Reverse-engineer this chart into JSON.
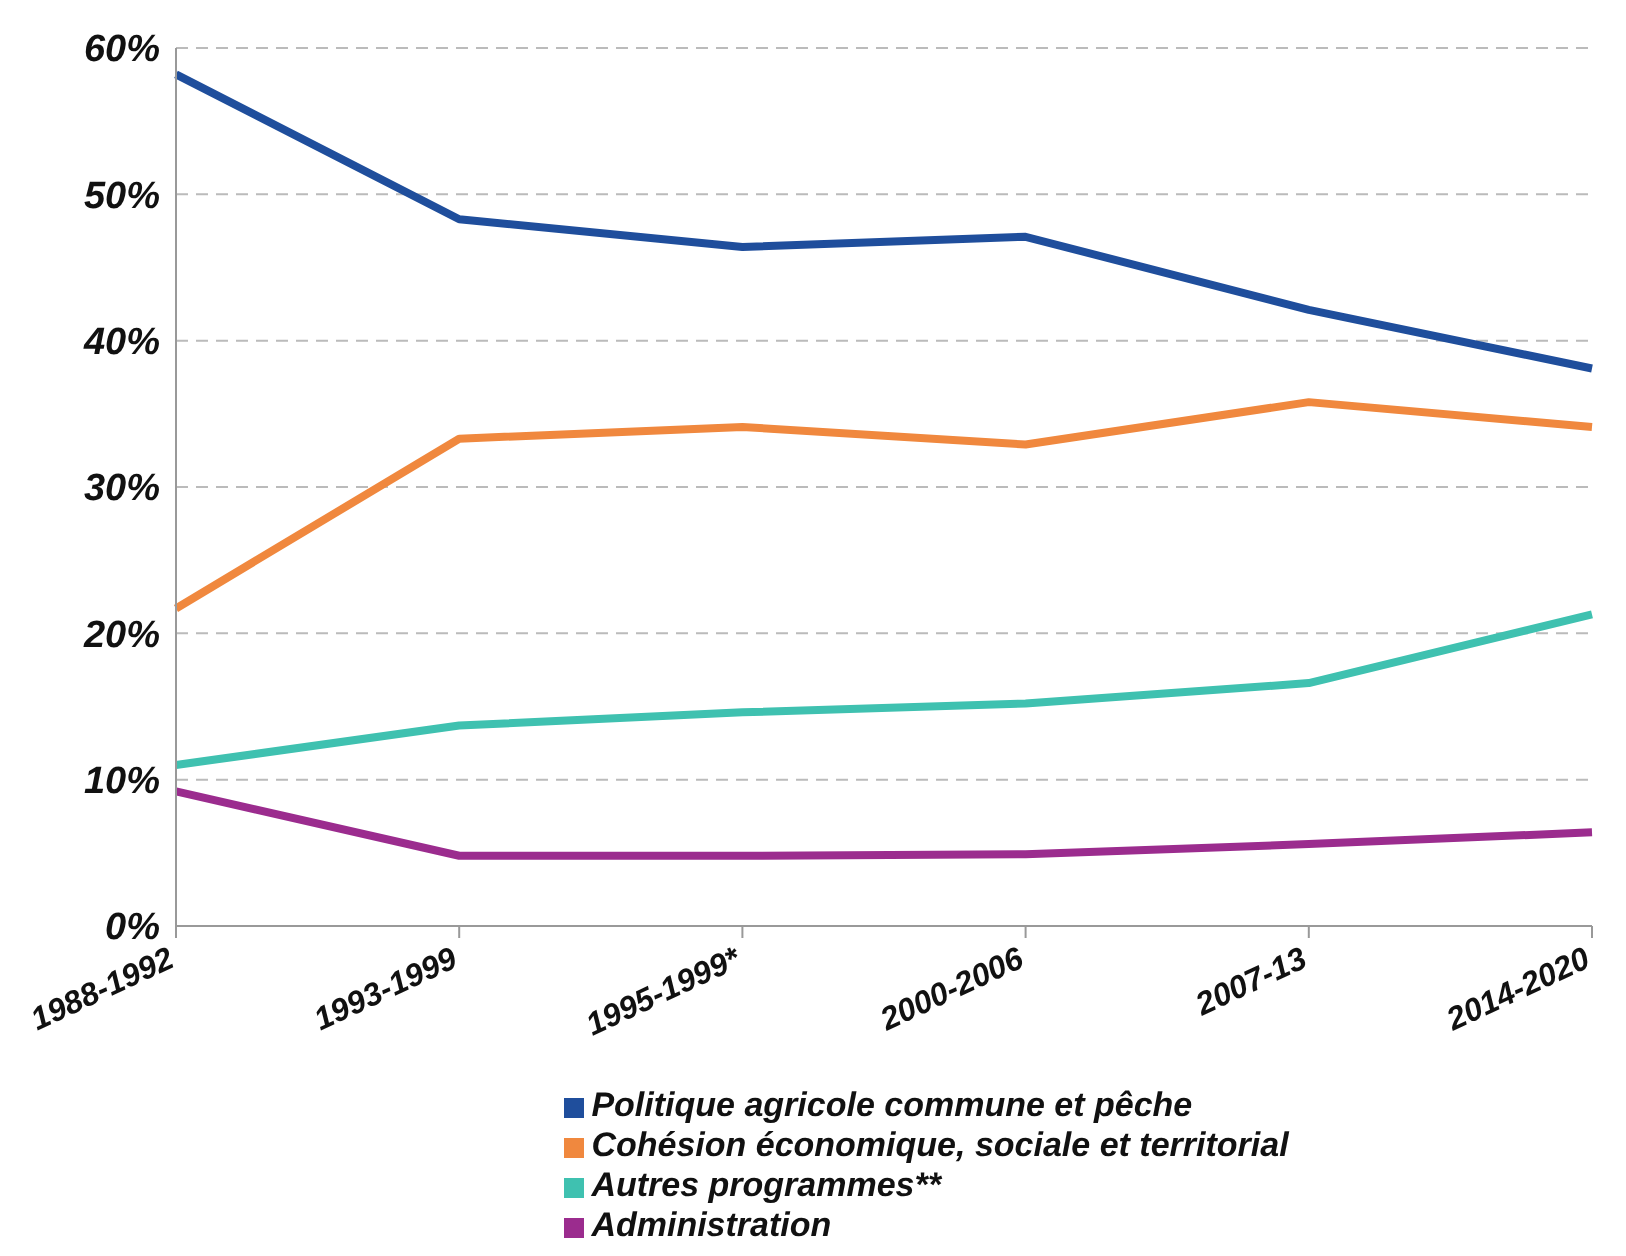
{
  "chart_data": {
    "type": "line",
    "categories": [
      "1988-1992",
      "1993-1999",
      "1995-1999*",
      "2000-2006",
      "2007-13",
      "2014-2020"
    ],
    "series": [
      {
        "name": "Politique agricole commune et pêche",
        "color": "#1f4e9c",
        "values": [
          58.2,
          48.3,
          46.4,
          47.1,
          42.1,
          38.1
        ]
      },
      {
        "name": "Cohésion économique, sociale et territorial",
        "color": "#f0883e",
        "values": [
          21.7,
          33.3,
          34.1,
          32.9,
          35.8,
          34.1
        ]
      },
      {
        "name": "Autres programmes**",
        "color": "#3fc1b0",
        "values": [
          11.0,
          13.7,
          14.6,
          15.2,
          16.6,
          21.3
        ]
      },
      {
        "name": "Administration",
        "color": "#9b2c8e",
        "values": [
          9.2,
          4.8,
          4.8,
          4.9,
          5.6,
          6.4
        ]
      }
    ],
    "ylim": [
      0,
      60
    ],
    "yticks": [
      {
        "value": 0,
        "label": "0%"
      },
      {
        "value": 10,
        "label": "10%"
      },
      {
        "value": 20,
        "label": "20%"
      },
      {
        "value": 30,
        "label": "30%"
      },
      {
        "value": 40,
        "label": "40%"
      },
      {
        "value": 50,
        "label": "50%"
      },
      {
        "value": 60,
        "label": "60%"
      }
    ],
    "grid": "y",
    "legend": "bottom",
    "marker": "none",
    "line_style": "solid"
  }
}
